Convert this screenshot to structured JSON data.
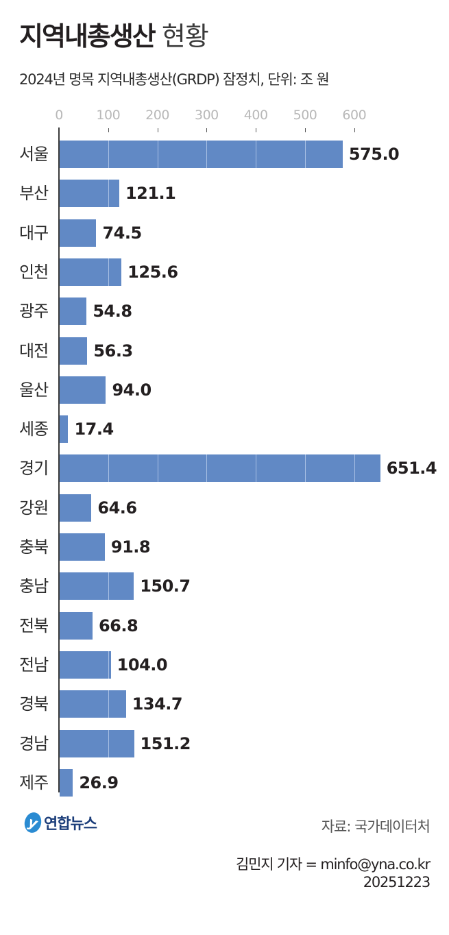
{
  "header": {
    "title_bold": "지역내총생산",
    "title_light": "현황",
    "subtitle": "2024년 명목 지역내총생산(GRDP) 잠정치, 단위: 조 원"
  },
  "axis": {
    "ticks": [
      "0",
      "100",
      "200",
      "300",
      "400",
      "500",
      "600"
    ]
  },
  "rows": [
    {
      "label": "서울",
      "value": "575.0"
    },
    {
      "label": "부산",
      "value": "121.1"
    },
    {
      "label": "대구",
      "value": "74.5"
    },
    {
      "label": "인천",
      "value": "125.6"
    },
    {
      "label": "광주",
      "value": "54.8"
    },
    {
      "label": "대전",
      "value": "56.3"
    },
    {
      "label": "울산",
      "value": "94.0"
    },
    {
      "label": "세종",
      "value": "17.4"
    },
    {
      "label": "경기",
      "value": "651.4"
    },
    {
      "label": "강원",
      "value": "64.6"
    },
    {
      "label": "충북",
      "value": "91.8"
    },
    {
      "label": "충남",
      "value": "150.7"
    },
    {
      "label": "전북",
      "value": "66.8"
    },
    {
      "label": "전남",
      "value": "104.0"
    },
    {
      "label": "경북",
      "value": "134.7"
    },
    {
      "label": "경남",
      "value": "151.2"
    },
    {
      "label": "제주",
      "value": "26.9"
    }
  ],
  "footer": {
    "logo_mark": "y",
    "logo_text": "연합뉴스",
    "source": "자료: 국가데이터처",
    "credit": "김민지 기자 = minfo@yna.co.kr",
    "date": "20251223"
  },
  "colors": {
    "bar": "#6189c5",
    "gridline": "#a9c0e4",
    "logo_blue": "#2a8bd2"
  },
  "chart_data": {
    "type": "bar",
    "orientation": "horizontal",
    "title": "지역내총생산 현황",
    "subtitle": "2024년 명목 지역내총생산(GRDP) 잠정치, 단위: 조 원",
    "categories": [
      "서울",
      "부산",
      "대구",
      "인천",
      "광주",
      "대전",
      "울산",
      "세종",
      "경기",
      "강원",
      "충북",
      "충남",
      "전북",
      "전남",
      "경북",
      "경남",
      "제주"
    ],
    "values": [
      575.0,
      121.1,
      74.5,
      125.6,
      54.8,
      56.3,
      94.0,
      17.4,
      651.4,
      64.6,
      91.8,
      150.7,
      66.8,
      104.0,
      134.7,
      151.2,
      26.9
    ],
    "xlabel": "",
    "ylabel": "",
    "xlim": [
      0,
      660
    ],
    "xticks": [
      0,
      100,
      200,
      300,
      400,
      500,
      600
    ],
    "grid": true,
    "legend": "none",
    "data_labels": true,
    "source": "국가데이터처"
  }
}
